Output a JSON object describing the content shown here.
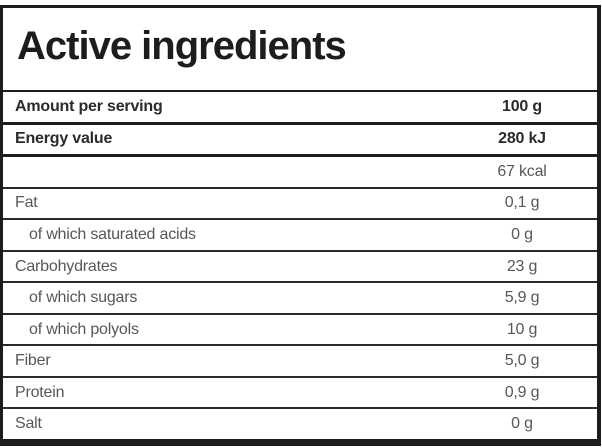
{
  "title": "Active ingredients",
  "table": {
    "rows": [
      {
        "label": "Amount per serving",
        "value": "100 g",
        "bold": true,
        "indent": false
      },
      {
        "label": "Energy value",
        "value": "280 kJ",
        "bold": true,
        "indent": false
      },
      {
        "label": "",
        "value": "67 kcal",
        "bold": false,
        "indent": false
      },
      {
        "label": "Fat",
        "value": "0,1 g",
        "bold": false,
        "indent": false
      },
      {
        "label": "of which saturated acids",
        "value": "0 g",
        "bold": false,
        "indent": true
      },
      {
        "label": "Carbohydrates",
        "value": "23 g",
        "bold": false,
        "indent": false
      },
      {
        "label": "of which sugars",
        "value": "5,9 g",
        "bold": false,
        "indent": true
      },
      {
        "label": "of which polyols",
        "value": "10 g",
        "bold": false,
        "indent": true
      },
      {
        "label": "Fiber",
        "value": "5,0 g",
        "bold": false,
        "indent": false
      },
      {
        "label": "Protein",
        "value": "0,9 g",
        "bold": false,
        "indent": false
      },
      {
        "label": "Salt",
        "value": "0 g",
        "bold": false,
        "indent": false
      }
    ]
  },
  "colors": {
    "background": "#ffffff",
    "border": "#1d1d1b",
    "text_strong": "#2b2b2b",
    "text_regular": "#575756"
  }
}
